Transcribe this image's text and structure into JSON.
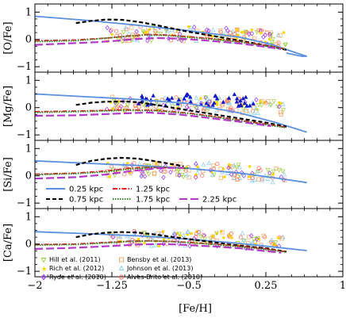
{
  "chart_data": {
    "type": "line",
    "xlabel": "[Fe/H]",
    "xlim": [
      -2,
      1
    ],
    "xticks": [
      -2,
      -1.25,
      -0.5,
      0.25,
      1
    ],
    "xtick_labels": [
      "−2",
      "−1.25",
      "−0.5",
      "0.25",
      "1"
    ],
    "ylim": [
      -1.2,
      1.3
    ],
    "yticks": [
      -1,
      0,
      1
    ],
    "ytick_labels": [
      "−1",
      "0",
      "1"
    ],
    "panels": [
      {
        "ylabel": "[O/Fe]",
        "series": [
          {
            "name": "0.25 kpc",
            "style": "solid",
            "color": "#5b8fdf",
            "x": [
              -2.0,
              -1.5,
              -1.0,
              -0.5,
              0.0,
              0.3,
              0.55,
              0.65,
              0.6,
              0.45
            ],
            "y": [
              0.85,
              0.7,
              0.52,
              0.32,
              0.08,
              -0.18,
              -0.5,
              -0.62,
              -0.62,
              -0.5
            ]
          },
          {
            "name": "0.75 kpc",
            "style": "dashed",
            "color": "#000000",
            "x": [
              -1.6,
              -1.45,
              -1.3,
              -1.15,
              -1.0,
              -0.85,
              -0.7,
              -0.5,
              -0.25,
              0.0,
              0.25,
              0.45
            ],
            "y": [
              0.6,
              0.68,
              0.73,
              0.72,
              0.65,
              0.55,
              0.43,
              0.28,
              0.12,
              -0.05,
              -0.22,
              -0.38
            ]
          },
          {
            "name": "1.25 kpc",
            "style": "dashdot",
            "color": "#dd2222",
            "x": [
              -2.0,
              -1.6,
              -1.3,
              -1.1,
              -0.9,
              -0.7,
              -0.5,
              -0.25,
              0.0,
              0.25,
              0.45
            ],
            "y": [
              -0.05,
              -0.02,
              0.05,
              0.12,
              0.18,
              0.16,
              0.1,
              0.02,
              -0.08,
              -0.22,
              -0.35
            ]
          },
          {
            "name": "1.75 kpc",
            "style": "dotted",
            "color": "#2e8b2e",
            "x": [
              -2.0,
              -1.6,
              -1.3,
              -1.1,
              -0.9,
              -0.7,
              -0.5,
              -0.25,
              0.0,
              0.25,
              0.45
            ],
            "y": [
              -0.08,
              -0.05,
              0.05,
              0.12,
              0.16,
              0.14,
              0.08,
              0.0,
              -0.1,
              -0.24,
              -0.36
            ]
          },
          {
            "name": "2.25 kpc",
            "style": "longdash",
            "color": "#b23ac8",
            "x": [
              -2.0,
              -1.7,
              -1.4,
              -1.2,
              -1.0,
              -0.8,
              -0.6,
              -0.4,
              -0.2,
              0.0,
              0.2,
              0.4
            ],
            "y": [
              -0.2,
              -0.15,
              -0.1,
              -0.05,
              0.02,
              0.05,
              0.03,
              -0.02,
              -0.08,
              -0.15,
              -0.25,
              -0.35
            ]
          }
        ]
      },
      {
        "ylabel": "[Mg/Fe]",
        "series": [
          {
            "name": "0.25 kpc",
            "style": "solid",
            "color": "#5b8fdf",
            "x": [
              -2.0,
              -1.5,
              -1.0,
              -0.5,
              0.0,
              0.35,
              0.65
            ],
            "y": [
              0.5,
              0.4,
              0.3,
              0.15,
              -0.2,
              -0.55,
              -0.9
            ]
          },
          {
            "name": "0.75 kpc",
            "style": "dashed",
            "color": "#000000",
            "x": [
              -1.6,
              -1.45,
              -1.3,
              -1.15,
              -1.0,
              -0.85,
              -0.7,
              -0.5,
              -0.25,
              0.0,
              0.25,
              0.45
            ],
            "y": [
              0.1,
              0.18,
              0.22,
              0.23,
              0.2,
              0.12,
              0.02,
              -0.1,
              -0.25,
              -0.4,
              -0.55,
              -0.7
            ]
          },
          {
            "name": "1.25 kpc",
            "style": "dashdot",
            "color": "#dd2222",
            "x": [
              -2.0,
              -1.5,
              -1.1,
              -0.8,
              -0.5,
              -0.2,
              0.1,
              0.45
            ],
            "y": [
              -0.15,
              -0.12,
              -0.08,
              -0.1,
              -0.2,
              -0.35,
              -0.52,
              -0.72
            ]
          },
          {
            "name": "1.75 kpc",
            "style": "dotted",
            "color": "#2e8b2e",
            "x": [
              -2.0,
              -1.5,
              -1.1,
              -0.8,
              -0.5,
              -0.2,
              0.1,
              0.45
            ],
            "y": [
              -0.18,
              -0.14,
              -0.1,
              -0.12,
              -0.22,
              -0.37,
              -0.54,
              -0.74
            ]
          },
          {
            "name": "2.25 kpc",
            "style": "longdash",
            "color": "#b23ac8",
            "x": [
              -2.0,
              -1.6,
              -1.2,
              -0.9,
              -0.6,
              -0.3,
              0.0,
              0.3
            ],
            "y": [
              -0.3,
              -0.28,
              -0.22,
              -0.18,
              -0.25,
              -0.38,
              -0.52,
              -0.68
            ]
          }
        ]
      },
      {
        "ylabel": "[Si/Fe]",
        "series": [
          {
            "name": "0.25 kpc",
            "style": "solid",
            "color": "#5b8fdf",
            "x": [
              -2.0,
              -1.5,
              -1.0,
              -0.5,
              0.0,
              0.35,
              0.65
            ],
            "y": [
              0.55,
              0.46,
              0.38,
              0.27,
              0.1,
              -0.08,
              -0.25
            ]
          },
          {
            "name": "0.75 kpc",
            "style": "dashed",
            "color": "#000000",
            "x": [
              -1.6,
              -1.45,
              -1.3,
              -1.15,
              -1.0,
              -0.85,
              -0.7,
              -0.55
            ],
            "y": [
              0.4,
              0.55,
              0.63,
              0.66,
              0.63,
              0.55,
              0.45,
              0.35
            ]
          },
          {
            "name": "1.25 kpc",
            "style": "dashdot",
            "color": "#dd2222",
            "x": [
              -2.0,
              -1.6,
              -1.3,
              -1.1,
              -0.9,
              -0.7,
              -0.5
            ],
            "y": [
              0.06,
              0.1,
              0.18,
              0.27,
              0.31,
              0.3,
              0.28
            ]
          },
          {
            "name": "1.75 kpc",
            "style": "dotted",
            "color": "#2e8b2e",
            "x": [
              -2.0,
              -1.6,
              -1.3,
              -1.1,
              -0.9,
              -0.7,
              -0.5
            ],
            "y": [
              0.04,
              0.08,
              0.15,
              0.24,
              0.3,
              0.3,
              0.28
            ]
          },
          {
            "name": "2.25 kpc",
            "style": "longdash",
            "color": "#b23ac8",
            "x": [
              -2.0,
              -1.6,
              -1.3,
              -1.05,
              -0.8,
              -0.55
            ],
            "y": [
              -0.1,
              -0.05,
              0.05,
              0.18,
              0.28,
              0.3
            ]
          }
        ]
      },
      {
        "ylabel": "[Ca/Fe]",
        "series": [
          {
            "name": "0.25 kpc",
            "style": "solid",
            "color": "#5b8fdf",
            "x": [
              -2.0,
              -1.5,
              -1.0,
              -0.5,
              0.0,
              0.35,
              0.65
            ],
            "y": [
              0.45,
              0.38,
              0.3,
              0.18,
              0.02,
              -0.12,
              -0.24
            ]
          },
          {
            "name": "0.75 kpc",
            "style": "dashed",
            "color": "#000000",
            "x": [
              -1.6,
              -1.45,
              -1.3,
              -1.15,
              -1.0,
              -0.85,
              -0.7,
              -0.5,
              -0.25,
              0.0,
              0.25,
              0.45
            ],
            "y": [
              0.25,
              0.36,
              0.42,
              0.44,
              0.42,
              0.36,
              0.28,
              0.18,
              0.06,
              -0.06,
              -0.16,
              -0.28
            ]
          },
          {
            "name": "1.25 kpc",
            "style": "dashdot",
            "color": "#dd2222",
            "x": [
              -2.0,
              -1.6,
              -1.3,
              -1.1,
              -0.9,
              -0.7,
              -0.5,
              -0.25,
              0.0,
              0.25,
              0.45
            ],
            "y": [
              -0.02,
              0.0,
              0.06,
              0.1,
              0.12,
              0.1,
              0.06,
              0.0,
              -0.08,
              -0.18,
              -0.28
            ]
          },
          {
            "name": "1.75 kpc",
            "style": "dotted",
            "color": "#2e8b2e",
            "x": [
              -2.0,
              -1.6,
              -1.3,
              -1.1,
              -0.9,
              -0.7,
              -0.5,
              -0.25,
              0.0,
              0.25,
              0.45
            ],
            "y": [
              -0.04,
              -0.02,
              0.04,
              0.09,
              0.11,
              0.1,
              0.05,
              -0.02,
              -0.1,
              -0.2,
              -0.3
            ]
          },
          {
            "name": "2.25 kpc",
            "style": "longdash",
            "color": "#b23ac8",
            "x": [
              -2.0,
              -1.7,
              -1.4,
              -1.2,
              -1.0,
              -0.8,
              -0.6,
              -0.4,
              -0.2,
              0.0,
              0.2,
              0.4
            ],
            "y": [
              -0.18,
              -0.15,
              -0.1,
              -0.06,
              -0.02,
              0.0,
              -0.02,
              -0.06,
              -0.1,
              -0.16,
              -0.24,
              -0.32
            ]
          }
        ]
      }
    ],
    "observations": [
      {
        "name": "Hill et al. (2011)",
        "marker": "triangle-down",
        "color": "#9acd32"
      },
      {
        "name": "Rich et al. (2012)",
        "marker": "star",
        "color": "#ffd700"
      },
      {
        "name": "Ryde et al. (2010)",
        "marker": "diamond",
        "color": "#9b30ff"
      },
      {
        "name": "Bensby et al. (2013)",
        "marker": "square",
        "color": "#f4a460"
      },
      {
        "name": "Johnson et al. (2013)",
        "marker": "triangle",
        "color": "#87ceeb"
      },
      {
        "name": "Alves-Brito et al. (2010)",
        "marker": "circle",
        "color": "#ff6347"
      }
    ],
    "legend_lines": [
      "0.25 kpc",
      "0.75 kpc",
      "1.25 kpc",
      "1.75 kpc",
      "2.25 kpc"
    ]
  }
}
